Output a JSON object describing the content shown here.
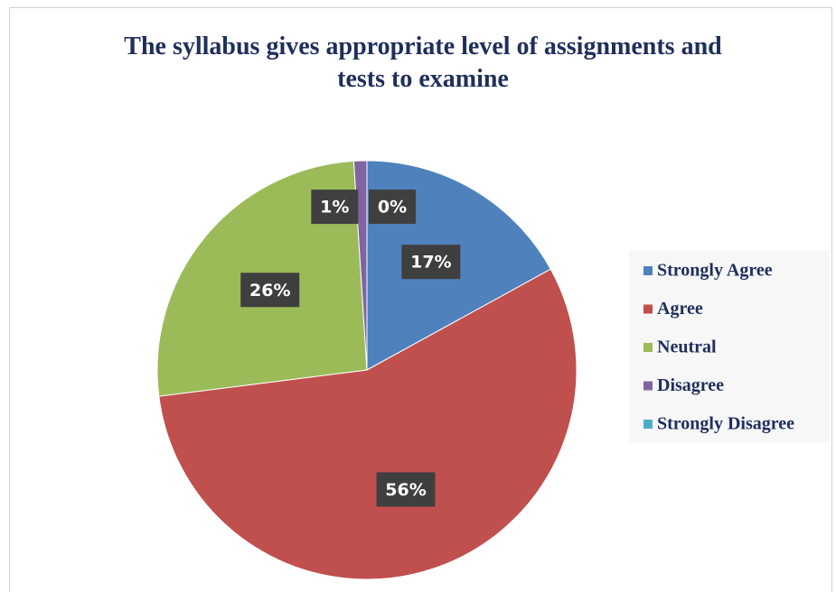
{
  "chart_data": {
    "type": "pie",
    "title": "The syllabus gives appropriate level of assignments and tests to examine",
    "categories": [
      "Strongly Agree",
      "Agree",
      "Neutral",
      "Disagree",
      "Strongly Disagree"
    ],
    "values": [
      17,
      56,
      26,
      1,
      0
    ],
    "value_labels": [
      "17%",
      "56%",
      "26%",
      "1%",
      "0%"
    ],
    "colors": [
      "#4f81bd",
      "#c0504d",
      "#9bbb59",
      "#8064a2",
      "#4bacc6"
    ],
    "legend": "right"
  }
}
